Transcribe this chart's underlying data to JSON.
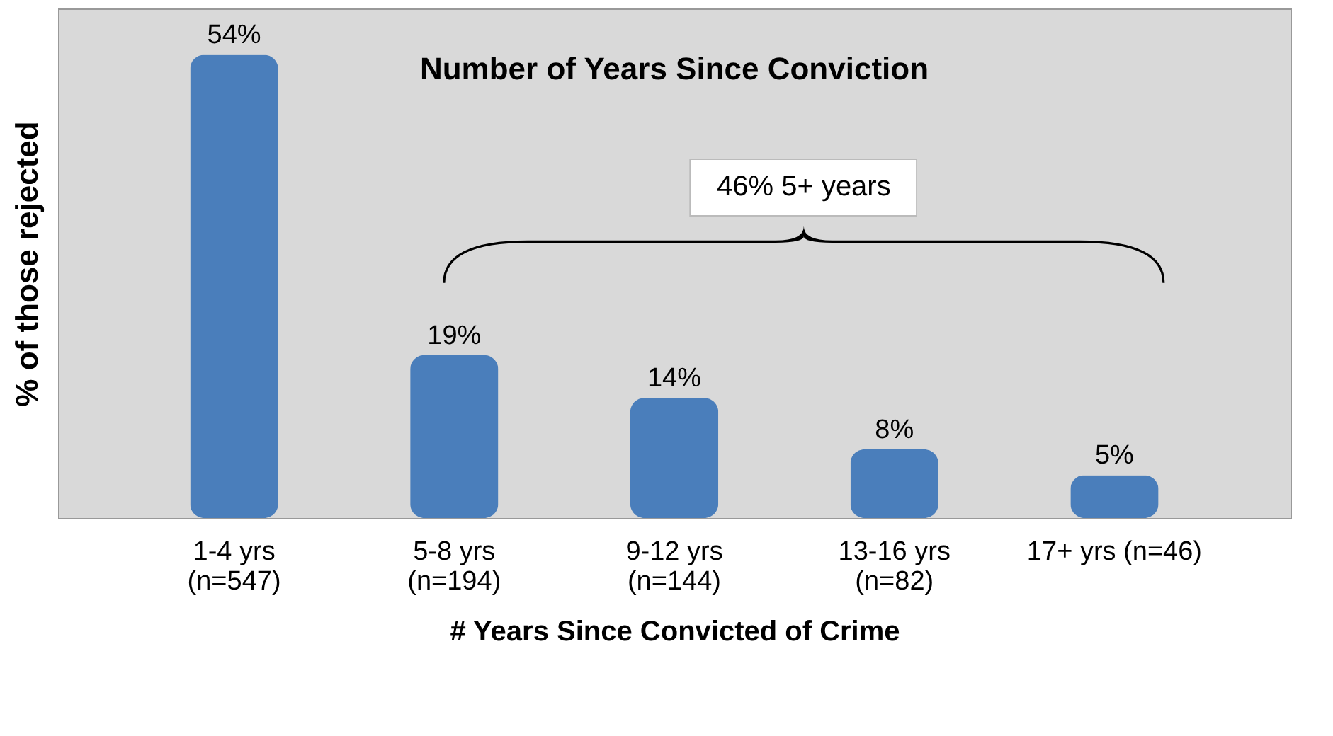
{
  "chart_data": {
    "type": "bar",
    "title": "Number of Years Since Conviction",
    "xlabel": "# Years Since Convicted of Crime",
    "ylabel": "% of those rejected",
    "categories": [
      "1-4 yrs\n(n=547)",
      "5-8 yrs\n(n=194)",
      "9-12 yrs\n(n=144)",
      "13-16 yrs\n(n=82)",
      "17+ yrs (n=46)"
    ],
    "values": [
      54,
      19,
      14,
      8,
      5
    ],
    "color": "#4a7ebb",
    "tick_labels": "x",
    "data_labels": true,
    "value_labels": [
      "54%",
      "19%",
      "14%",
      "8%",
      "5%"
    ],
    "annotations": [
      "46% 5+ years"
    ]
  }
}
